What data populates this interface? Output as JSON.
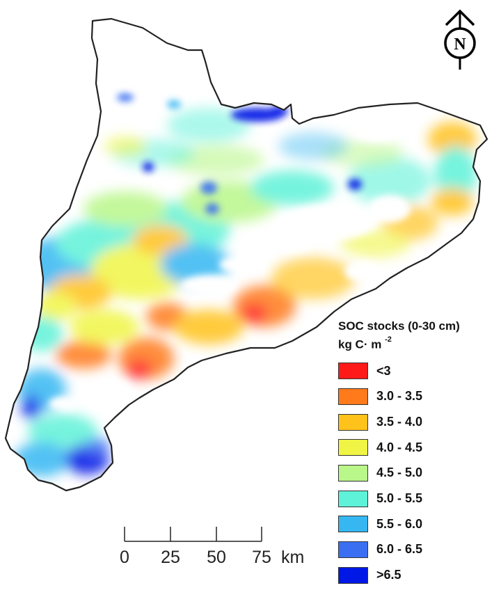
{
  "north_arrow": {
    "letter": "N"
  },
  "legend": {
    "title_line1": "SOC stocks (0-30 cm)",
    "title_line2": "kg C· m",
    "title_exp": "-2",
    "items": [
      {
        "label": "<3",
        "color": "#ff1a1a"
      },
      {
        "label": "3.0 - 3.5",
        "color": "#ff7a1a"
      },
      {
        "label": "3.5 - 4.0",
        "color": "#ffc21a"
      },
      {
        "label": "4.0 - 4.5",
        "color": "#f0f545"
      },
      {
        "label": "4.5 - 5.0",
        "color": "#b9f78a"
      },
      {
        "label": "5.0 - 5.5",
        "color": "#5ef2d8"
      },
      {
        "label": "5.5 - 6.0",
        "color": "#36b7f2"
      },
      {
        "label": "6.0 - 6.5",
        "color": "#3a6ff2"
      },
      {
        "label": ">6.5",
        "color": "#0018e6"
      }
    ]
  },
  "scale_bar": {
    "ticks": [
      "0",
      "25",
      "50",
      "75"
    ],
    "unit": "km"
  }
}
